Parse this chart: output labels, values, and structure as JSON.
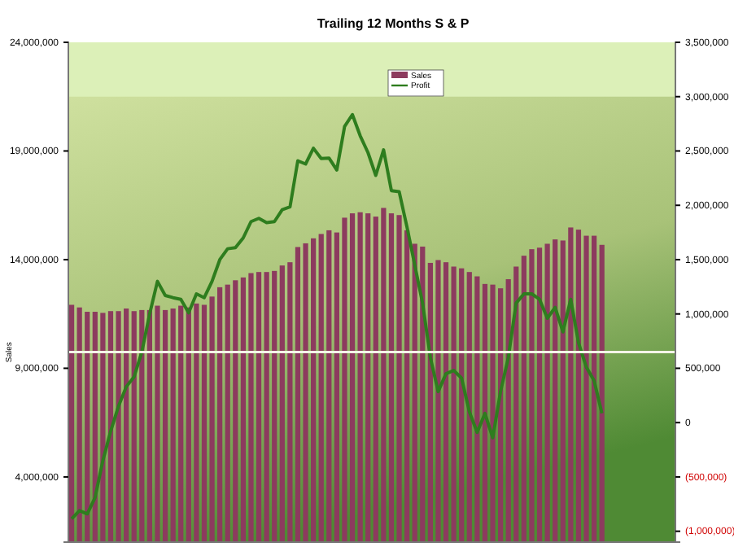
{
  "chart_data": {
    "type": "bar",
    "title": "Trailing 12 Months S & P",
    "ylabel": "Sales",
    "categories": [
      null,
      null,
      null,
      null,
      null,
      null,
      null,
      null,
      null,
      null,
      null,
      null,
      null,
      null,
      null,
      null,
      null,
      null,
      null,
      null,
      null,
      null,
      null,
      null,
      null,
      null,
      null,
      null,
      null,
      null,
      null,
      null,
      null,
      null,
      null,
      null,
      null,
      null,
      null,
      null,
      null,
      null,
      null,
      null,
      null,
      null,
      null,
      null,
      null,
      null,
      null,
      null,
      null,
      null,
      null,
      null,
      null,
      null,
      null,
      null,
      null,
      null,
      null,
      null,
      null,
      null,
      null,
      null,
      null,
      null,
      null,
      null,
      null,
      null,
      null,
      null,
      null,
      null
    ],
    "series": [
      {
        "name": "Sales",
        "color": "#8c3b5e",
        "values": [
          11920000,
          11800000,
          11600000,
          11600000,
          11550000,
          11630000,
          11630000,
          11750000,
          11630000,
          11680000,
          11680000,
          11880000,
          11680000,
          11750000,
          11880000,
          11800000,
          11980000,
          11920000,
          12300000,
          12730000,
          12850000,
          13050000,
          13180000,
          13380000,
          13430000,
          13430000,
          13480000,
          13730000,
          13880000,
          14580000,
          14750000,
          14980000,
          15180000,
          15350000,
          15250000,
          15930000,
          16130000,
          16180000,
          16130000,
          15980000,
          16380000,
          16130000,
          16050000,
          15350000,
          14730000,
          14600000,
          13850000,
          13980000,
          13880000,
          13680000,
          13600000,
          13430000,
          13230000,
          12880000,
          12850000,
          12680000,
          13100000,
          13680000,
          14180000,
          14480000,
          14550000,
          14730000,
          14930000,
          14880000,
          15480000,
          15380000,
          15100000,
          15100000,
          14680000,
          null,
          null,
          null,
          null,
          null,
          null,
          null,
          null,
          null
        ]
      },
      {
        "name": "Profit",
        "type": "line",
        "axis": "y2",
        "color": "#2e7d1e",
        "values": [
          -885000,
          -810000,
          -840000,
          -690000,
          -350000,
          -80000,
          150000,
          330000,
          420000,
          650000,
          1000000,
          1300000,
          1170000,
          1150000,
          1135000,
          1010000,
          1185000,
          1150000,
          1300000,
          1500000,
          1600000,
          1610000,
          1700000,
          1850000,
          1880000,
          1840000,
          1850000,
          1960000,
          1985000,
          2410000,
          2380000,
          2525000,
          2430000,
          2435000,
          2325000,
          2725000,
          2835000,
          2640000,
          2485000,
          2275000,
          2510000,
          2135000,
          2125000,
          1800000,
          1450000,
          1100000,
          600000,
          285000,
          450000,
          480000,
          410000,
          100000,
          -90000,
          85000,
          -140000,
          285000,
          600000,
          1100000,
          1185000,
          1185000,
          1135000,
          960000,
          1060000,
          835000,
          1135000,
          735000,
          510000,
          385000,
          85000,
          null,
          null,
          null,
          null,
          null,
          null,
          null,
          null,
          null
        ]
      }
    ],
    "ylim": [
      1000000,
      24000000
    ],
    "yticks": [
      {
        "value": 4000000,
        "label": "4,000,000"
      },
      {
        "value": 9000000,
        "label": "9,000,000"
      },
      {
        "value": 14000000,
        "label": "14,000,000"
      },
      {
        "value": 19000000,
        "label": "19,000,000"
      },
      {
        "value": 24000000,
        "label": "24,000,000"
      }
    ],
    "y2lim": [
      -1100000,
      3500000
    ],
    "y2ticks": [
      {
        "value": -1000000,
        "label": "(1,000,000)"
      },
      {
        "value": -500000,
        "label": "(500,000)"
      },
      {
        "value": 0,
        "label": "0"
      },
      {
        "value": 500000,
        "label": "500,000"
      },
      {
        "value": 1000000,
        "label": "1,000,000"
      },
      {
        "value": 1500000,
        "label": "1,500,000"
      },
      {
        "value": 2000000,
        "label": "2,000,000"
      },
      {
        "value": 2500000,
        "label": "2,500,000"
      },
      {
        "value": 3000000,
        "label": "3,000,000"
      },
      {
        "value": 3500000,
        "label": "3,500,000"
      }
    ],
    "bands": [
      {
        "axis": "y2",
        "from": 3000000,
        "to": 3500000,
        "color": "#dcf0b8"
      }
    ],
    "ref_lines": [
      {
        "axis": "y2",
        "value": 650000,
        "color": "#f4f4e8"
      }
    ],
    "legend": "top",
    "marker": "none",
    "line_style": "solid"
  }
}
